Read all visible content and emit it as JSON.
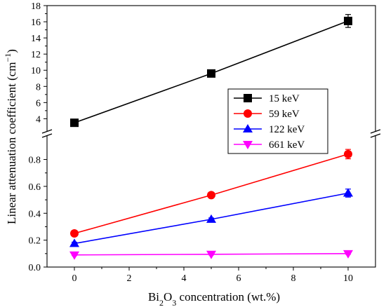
{
  "chart_data": {
    "type": "line",
    "xlabel": {
      "pre": "Bi",
      "sub1": "2",
      "mid": "O",
      "sub2": "3",
      "post": " concentration (wt.%)"
    },
    "ylabel": {
      "pre": "Linear attenuation coefficient (cm",
      "sup": "−1",
      "post": ")"
    },
    "x": [
      0,
      5,
      10
    ],
    "xlim": [
      -1,
      11
    ],
    "xticks": [
      0,
      2,
      4,
      6,
      8,
      10
    ],
    "y_broken_axis": true,
    "y_segments": [
      {
        "name": "upper",
        "ylim": [
          2.3,
          18
        ],
        "ticks": [
          4,
          6,
          8,
          10,
          12,
          14,
          16,
          18
        ]
      },
      {
        "name": "lower",
        "ylim": [
          0,
          0.98
        ],
        "ticks": [
          0.0,
          0.2,
          0.4,
          0.6,
          0.8
        ]
      }
    ],
    "series": [
      {
        "name": "15 keV",
        "color": "#000000",
        "marker": "square",
        "segment": "upper",
        "values": [
          3.5,
          9.6,
          16.1
        ],
        "errors": [
          0.1,
          0.3,
          0.8
        ]
      },
      {
        "name": "59 keV",
        "color": "#ff0000",
        "marker": "circle",
        "segment": "lower",
        "values": [
          0.25,
          0.535,
          0.84
        ],
        "errors": [
          0.01,
          0.015,
          0.035
        ]
      },
      {
        "name": "122 keV",
        "color": "#0000ff",
        "marker": "triangle-up",
        "segment": "lower",
        "values": [
          0.175,
          0.355,
          0.55
        ],
        "errors": [
          0.01,
          0.01,
          0.03
        ]
      },
      {
        "name": "661 keV",
        "color": "#ff00ff",
        "marker": "triangle-down",
        "segment": "lower",
        "values": [
          0.09,
          0.095,
          0.1
        ],
        "errors": [
          0.005,
          0.005,
          0.005
        ]
      }
    ],
    "legend": {
      "placement": "center-right",
      "items": [
        "15 keV",
        "59 keV",
        "122 keV",
        "661 keV"
      ]
    }
  }
}
